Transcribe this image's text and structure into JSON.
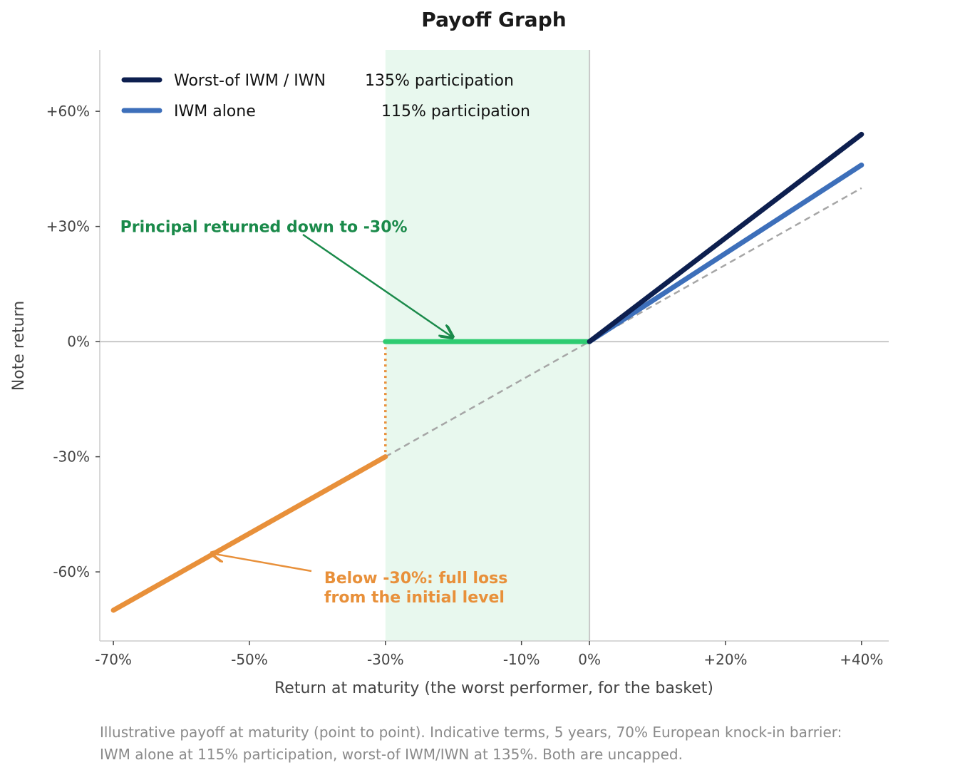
{
  "chart_data": {
    "type": "line",
    "title": "Payoff Graph",
    "xlabel": "Return at maturity (the worst performer, for the basket)",
    "ylabel": "Note return",
    "xlim": [
      -72,
      44
    ],
    "ylim": [
      -78,
      76
    ],
    "x_ticks": [
      {
        "value": -70,
        "label": "-70%"
      },
      {
        "value": -50,
        "label": "-50%"
      },
      {
        "value": -30,
        "label": "-30%"
      },
      {
        "value": -10,
        "label": "-10%"
      },
      {
        "value": 0,
        "label": "0%"
      },
      {
        "value": 20,
        "label": "+20%"
      },
      {
        "value": 40,
        "label": "+40%"
      }
    ],
    "y_ticks": [
      {
        "value": 60,
        "label": "+60%"
      },
      {
        "value": 30,
        "label": "+30%"
      },
      {
        "value": 0,
        "label": "0%"
      },
      {
        "value": -30,
        "label": "-30%"
      },
      {
        "value": -60,
        "label": "-60%"
      }
    ],
    "shaded_region": {
      "x": [
        -30,
        0
      ],
      "color": "#e8f8ee"
    },
    "series": [
      {
        "name": "Worst-of IWM / IWN",
        "participation": "135% participation",
        "color": "#0d1f4f",
        "x": [
          0,
          40
        ],
        "y": [
          0,
          54
        ]
      },
      {
        "name": "IWM alone",
        "participation": "115% participation",
        "color": "#3d6fba",
        "x": [
          0,
          40
        ],
        "y": [
          0,
          46
        ]
      },
      {
        "color": "#2ecc71",
        "x": [
          -30,
          0
        ],
        "y": [
          0,
          0
        ]
      },
      {
        "color": "#e8903a",
        "x": [
          -70,
          -30
        ],
        "y": [
          -70,
          -30
        ]
      }
    ],
    "reference_line": {
      "color": "#a6a6a6",
      "x": [
        -30,
        40
      ],
      "y": [
        -30,
        40
      ]
    },
    "barrier_drop": {
      "color": "#e8903a",
      "x": [
        -30,
        -30
      ],
      "y": [
        0,
        -30
      ]
    },
    "annotations": [
      {
        "text": "Principal returned down to -30%",
        "color": "#1a8a4a",
        "target": [
          -20,
          0
        ],
        "text_pos": [
          -69,
          30
        ]
      },
      {
        "text_lines": [
          "Below -30%: full loss",
          "from the initial level"
        ],
        "color": "#e8903a",
        "target": [
          -56,
          -55
        ],
        "text_pos": [
          -39,
          -62
        ]
      }
    ],
    "legend": {
      "position": "top-left"
    }
  },
  "footnote": {
    "line1": "Illustrative payoff at maturity (point to point). Indicative terms, 5 years, 70% European knock-in barrier:",
    "line2": "IWM alone at 115% participation, worst-of IWM/IWN at 135%. Both are uncapped."
  }
}
